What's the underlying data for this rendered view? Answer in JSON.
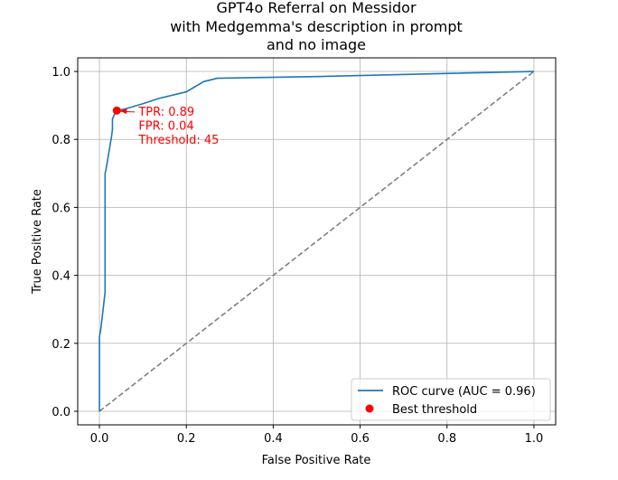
{
  "chart_data": {
    "type": "line",
    "title_lines": [
      "GPT4o Referral on Messidor",
      "with Medgemma's description in prompt",
      "and no image"
    ],
    "xlabel": "False Positive Rate",
    "ylabel": "True Positive Rate",
    "xlim": [
      -0.05,
      1.05
    ],
    "ylim": [
      -0.04,
      1.04
    ],
    "xticks": [
      0.0,
      0.2,
      0.4,
      0.6,
      0.8,
      1.0
    ],
    "yticks": [
      0.0,
      0.2,
      0.4,
      0.6,
      0.8,
      1.0
    ],
    "xtick_labels": [
      "0.0",
      "0.2",
      "0.4",
      "0.6",
      "0.8",
      "1.0"
    ],
    "ytick_labels": [
      "0.0",
      "0.2",
      "0.4",
      "0.6",
      "0.8",
      "1.0"
    ],
    "grid": true,
    "series": [
      {
        "name": "ROC curve (AUC = 0.96)",
        "color": "#1f77b4",
        "x": [
          0.0,
          0.0,
          0.0,
          0.003,
          0.013,
          0.013,
          0.015,
          0.028,
          0.03,
          0.03,
          0.035,
          0.04,
          0.06,
          0.1,
          0.135,
          0.2,
          0.24,
          0.265,
          0.27,
          0.5,
          1.0
        ],
        "y": [
          0.0,
          0.2,
          0.22,
          0.24,
          0.35,
          0.7,
          0.71,
          0.81,
          0.83,
          0.86,
          0.875,
          0.885,
          0.89,
          0.905,
          0.92,
          0.94,
          0.97,
          0.978,
          0.98,
          0.985,
          1.0
        ]
      },
      {
        "name": "",
        "color": "#808080",
        "dashed": true,
        "x": [
          0.0,
          1.0
        ],
        "y": [
          0.0,
          1.0
        ]
      }
    ],
    "best_point": {
      "name": "Best threshold",
      "color": "#ff0000",
      "x": 0.04,
      "y": 0.885
    },
    "annotation": {
      "lines": [
        "TPR: 0.89",
        "FPR: 0.04",
        "Threshold: 45"
      ],
      "text_x": 0.09,
      "text_y": 0.87,
      "color": "#ff0000"
    },
    "legend": {
      "placement": "lower-right",
      "entries": [
        "ROC curve (AUC = 0.96)",
        "Best threshold"
      ]
    }
  }
}
